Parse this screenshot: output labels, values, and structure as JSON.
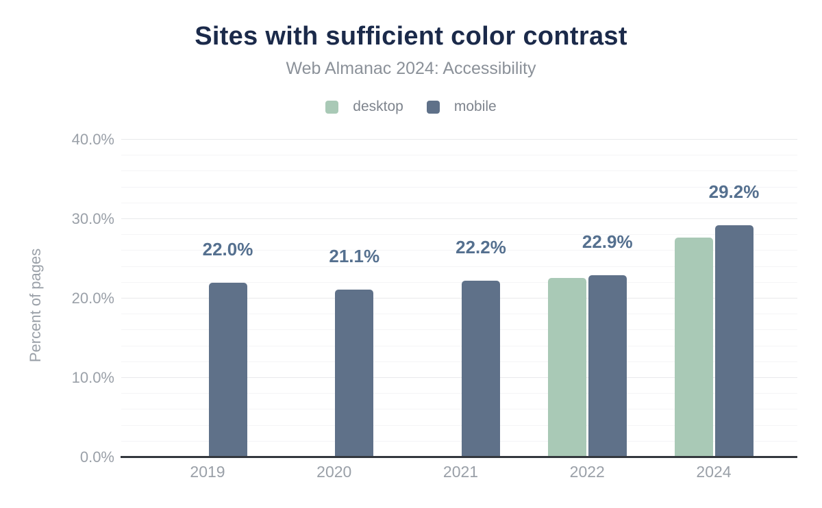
{
  "header": {
    "title": "Sites with sufficient color contrast",
    "subtitle": "Web Almanac 2024: Accessibility"
  },
  "legend": [
    {
      "label": "desktop",
      "color": "#a9c9b6"
    },
    {
      "label": "mobile",
      "color": "#5f7189"
    }
  ],
  "colors": {
    "title": "#1b2a4a",
    "subtitle": "#8b9199",
    "axis_text": "#9aa0a8",
    "data_label": "#55708f",
    "desktop_bar": "#a9c9b6",
    "mobile_bar": "#5f7189",
    "axis_line": "#33373d",
    "grid_major": "#e8e9eb",
    "grid_minor": "#f4f4f6"
  },
  "chart_data": {
    "type": "bar",
    "title": "Sites with sufficient color contrast",
    "subtitle": "Web Almanac 2024: Accessibility",
    "xlabel": "",
    "ylabel": "Percent of pages",
    "ylim": [
      0,
      40
    ],
    "y_ticks": [
      "0.0%",
      "10.0%",
      "20.0%",
      "30.0%",
      "40.0%"
    ],
    "y_major_step": 10,
    "y_minor_step": 2,
    "grid": true,
    "legend_position": "top",
    "categories": [
      "2019",
      "2020",
      "2021",
      "2022",
      "2024"
    ],
    "series": [
      {
        "name": "desktop",
        "color": "#a9c9b6",
        "values": [
          null,
          null,
          null,
          22.6,
          27.7
        ]
      },
      {
        "name": "mobile",
        "color": "#5f7189",
        "values": [
          22.0,
          21.1,
          22.2,
          22.9,
          29.2
        ]
      }
    ],
    "data_labels": {
      "series": "mobile",
      "values": [
        "22.0%",
        "21.1%",
        "22.2%",
        "22.9%",
        "29.2%"
      ]
    }
  }
}
